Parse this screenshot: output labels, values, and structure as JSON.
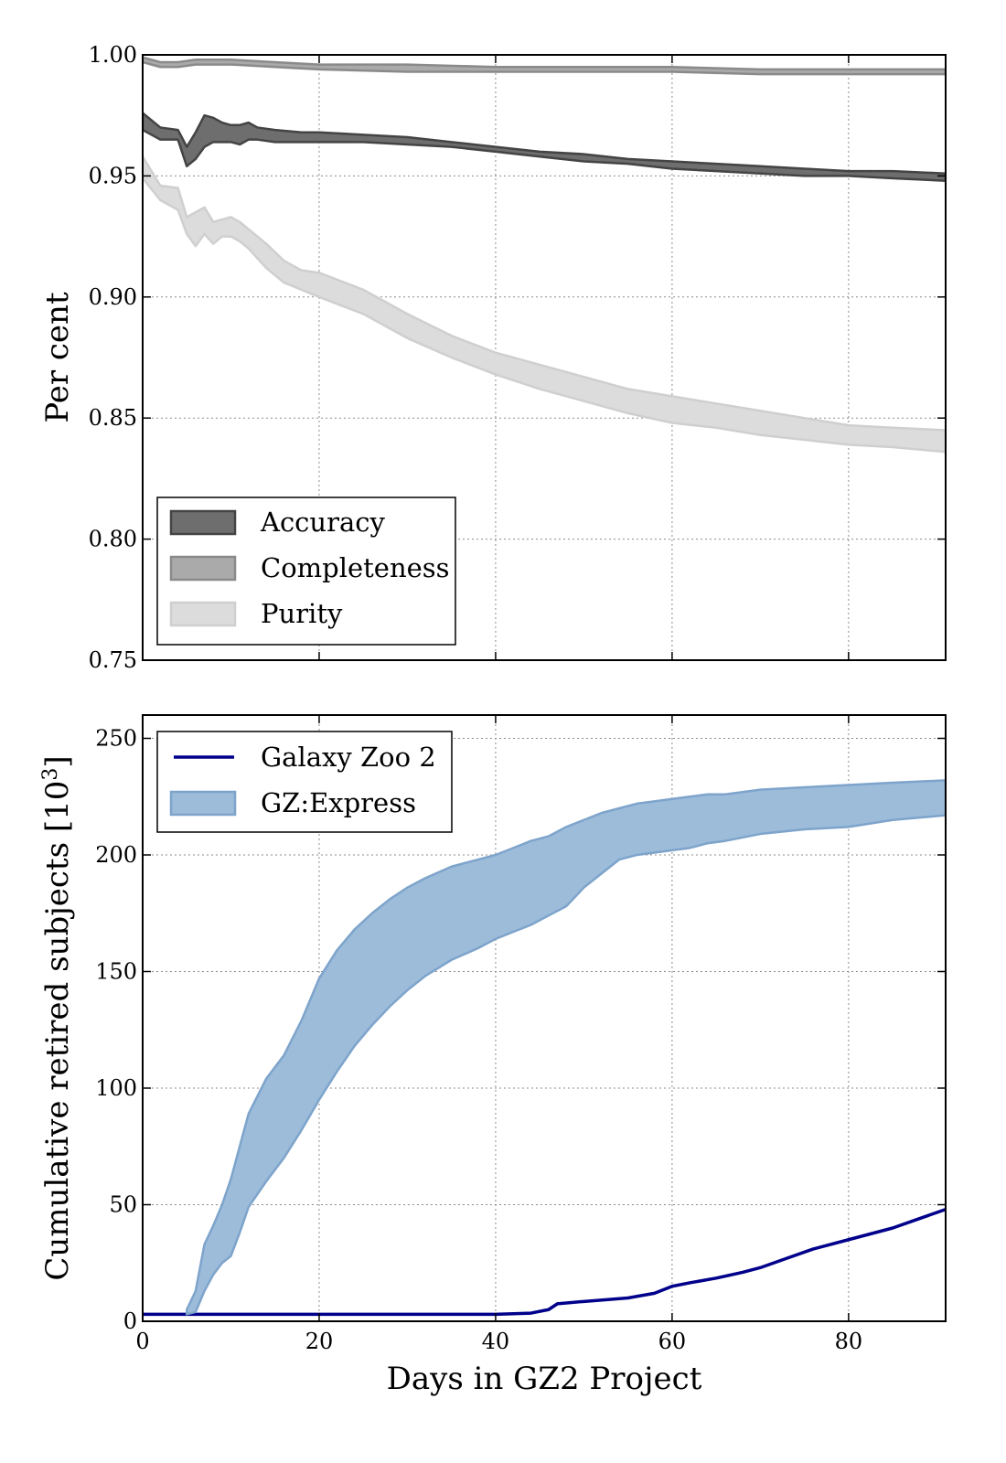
{
  "chart_data": [
    {
      "type": "area",
      "xlabel": "",
      "ylabel": "Per cent",
      "xlim": [
        0,
        91
      ],
      "ylim": [
        0.75,
        1.0
      ],
      "yticks": [
        "0.75",
        "0.80",
        "0.85",
        "0.90",
        "0.95",
        "1.00"
      ],
      "xticks": [
        0,
        20,
        40,
        60,
        80
      ],
      "x_ticklabels_shown": false,
      "grid": true,
      "legend": {
        "position": "lower-left",
        "entries": [
          "Accuracy",
          "Completeness",
          "Purity"
        ]
      },
      "series": [
        {
          "name": "Accuracy",
          "style": "band",
          "color": "#6e6e6e",
          "edge_color": "#444444",
          "x": [
            0,
            2,
            4,
            5,
            6,
            7,
            8,
            9,
            10,
            11,
            12,
            13,
            15,
            18,
            20,
            25,
            30,
            35,
            40,
            45,
            50,
            55,
            60,
            65,
            70,
            75,
            80,
            85,
            91
          ],
          "upper": [
            0.976,
            0.97,
            0.969,
            0.962,
            0.968,
            0.975,
            0.974,
            0.972,
            0.971,
            0.971,
            0.972,
            0.97,
            0.969,
            0.968,
            0.968,
            0.967,
            0.966,
            0.964,
            0.962,
            0.96,
            0.959,
            0.957,
            0.956,
            0.955,
            0.954,
            0.953,
            0.952,
            0.952,
            0.951
          ],
          "lower": [
            0.969,
            0.965,
            0.965,
            0.954,
            0.957,
            0.962,
            0.964,
            0.964,
            0.964,
            0.963,
            0.965,
            0.965,
            0.964,
            0.964,
            0.964,
            0.964,
            0.963,
            0.962,
            0.96,
            0.958,
            0.956,
            0.955,
            0.953,
            0.952,
            0.951,
            0.95,
            0.95,
            0.949,
            0.948
          ]
        },
        {
          "name": "Completeness",
          "style": "band",
          "color": "#aaaaaa",
          "edge_color": "#8a8a8a",
          "x": [
            0,
            2,
            4,
            6,
            8,
            10,
            15,
            20,
            30,
            40,
            50,
            60,
            70,
            80,
            91
          ],
          "upper": [
            0.999,
            0.997,
            0.997,
            0.998,
            0.998,
            0.998,
            0.997,
            0.996,
            0.996,
            0.995,
            0.995,
            0.995,
            0.994,
            0.994,
            0.994
          ],
          "lower": [
            0.997,
            0.995,
            0.995,
            0.996,
            0.996,
            0.996,
            0.995,
            0.994,
            0.993,
            0.993,
            0.993,
            0.993,
            0.992,
            0.992,
            0.992
          ]
        },
        {
          "name": "Purity",
          "style": "band",
          "color": "#dcdcdc",
          "edge_color": "#cfcfcf",
          "x": [
            0,
            2,
            4,
            5,
            6,
            7,
            8,
            9,
            10,
            11,
            12,
            14,
            16,
            18,
            20,
            25,
            30,
            35,
            40,
            45,
            50,
            55,
            60,
            65,
            70,
            75,
            80,
            85,
            91
          ],
          "upper": [
            0.958,
            0.946,
            0.945,
            0.933,
            0.935,
            0.937,
            0.931,
            0.932,
            0.933,
            0.931,
            0.928,
            0.922,
            0.915,
            0.911,
            0.91,
            0.903,
            0.893,
            0.884,
            0.877,
            0.872,
            0.867,
            0.862,
            0.859,
            0.856,
            0.853,
            0.85,
            0.847,
            0.846,
            0.845
          ],
          "lower": [
            0.949,
            0.94,
            0.936,
            0.926,
            0.921,
            0.926,
            0.922,
            0.925,
            0.925,
            0.923,
            0.92,
            0.912,
            0.906,
            0.903,
            0.9,
            0.893,
            0.883,
            0.875,
            0.868,
            0.862,
            0.857,
            0.852,
            0.848,
            0.846,
            0.843,
            0.841,
            0.839,
            0.838,
            0.836
          ]
        }
      ]
    },
    {
      "type": "area",
      "xlabel": "Days in GZ2 Project",
      "ylabel": "Cumulative retired subjects  [10",
      "ylabel_superscript": "3",
      "ylabel_suffix": "]",
      "xlim": [
        0,
        91
      ],
      "ylim": [
        0,
        260
      ],
      "yticks": [
        "0",
        "50",
        "100",
        "150",
        "200",
        "250"
      ],
      "xticks": [
        "0",
        "20",
        "40",
        "60",
        "80"
      ],
      "grid": true,
      "legend": {
        "position": "upper-left",
        "entries": [
          "Galaxy Zoo 2",
          "GZ:Express"
        ]
      },
      "series": [
        {
          "name": "Galaxy Zoo 2",
          "style": "line",
          "color": "#00008b",
          "x": [
            0,
            10,
            20,
            30,
            40,
            44,
            46,
            47,
            50,
            55,
            58,
            60,
            62,
            65,
            68,
            70,
            73,
            76,
            80,
            85,
            88,
            91
          ],
          "y": [
            3,
            3,
            3,
            3,
            3,
            3.5,
            5,
            7.5,
            8.5,
            10,
            12,
            15,
            16.5,
            18.5,
            21,
            23,
            27,
            31,
            35,
            40,
            44,
            48
          ]
        },
        {
          "name": "GZ:Express",
          "style": "band",
          "color": "#9cbcda",
          "edge_color": "#7ea4cb",
          "x": [
            5,
            6,
            7,
            8,
            9,
            10,
            11,
            12,
            14,
            16,
            18,
            20,
            22,
            24,
            26,
            28,
            30,
            32,
            35,
            38,
            40,
            42,
            44,
            46,
            48,
            50,
            52,
            54,
            56,
            58,
            60,
            62,
            64,
            66,
            70,
            75,
            80,
            85,
            91
          ],
          "upper": [
            5,
            13,
            33,
            41,
            50,
            61,
            75,
            89,
            104,
            114,
            129,
            147,
            159,
            168,
            175,
            181,
            186,
            190,
            195,
            198,
            200,
            203,
            206,
            208,
            212,
            215,
            218,
            220,
            222,
            223,
            224,
            225,
            226,
            226,
            228,
            229,
            230,
            231,
            232
          ],
          "lower": [
            3,
            4,
            13,
            20,
            25,
            28,
            38,
            49,
            60,
            70,
            82,
            95,
            107,
            118,
            127,
            135,
            142,
            148,
            155,
            160,
            164,
            167,
            170,
            174,
            178,
            186,
            192,
            198,
            200,
            201,
            202,
            203,
            205,
            206,
            209,
            211,
            212,
            215,
            217
          ]
        }
      ]
    }
  ]
}
